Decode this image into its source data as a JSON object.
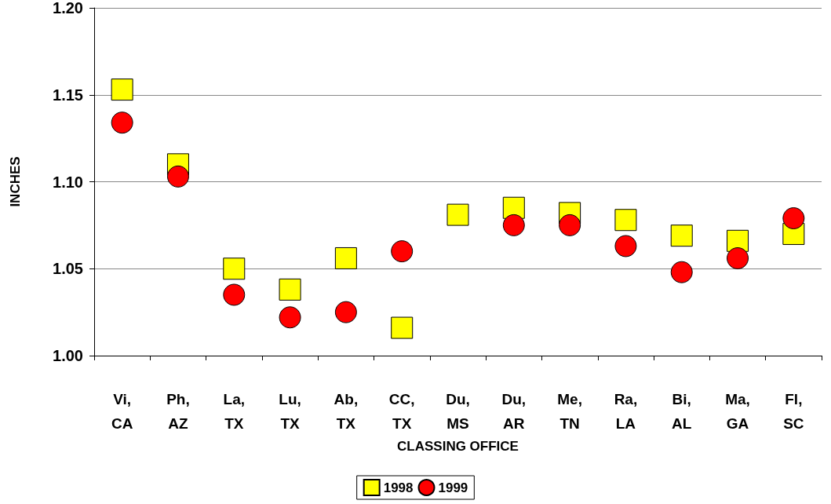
{
  "chart_data": {
    "type": "scatter",
    "xlabel": "CLASSING OFFICE",
    "ylabel": "INCHES",
    "categories": [
      "Vi,\nCA",
      "Ph,\nAZ",
      "La,\nTX",
      "Lu,\nTX",
      "Ab,\nTX",
      "CC,\nTX",
      "Du,\nMS",
      "Du,\nAR",
      "Me,\nTN",
      "Ra,\nLA",
      "Bi,\nAL",
      "Ma,\nGA",
      "Fl,\nSC"
    ],
    "series": [
      {
        "name": "1998",
        "color": "#ffff00",
        "marker": "square",
        "values": [
          1.153,
          1.11,
          1.05,
          1.038,
          1.056,
          1.016,
          1.081,
          1.085,
          1.082,
          1.078,
          1.069,
          1.066,
          1.07
        ]
      },
      {
        "name": "1999",
        "color": "#ff0000",
        "marker": "circle",
        "values": [
          1.134,
          1.103,
          1.035,
          1.022,
          1.025,
          1.06,
          null,
          1.075,
          1.075,
          1.063,
          1.048,
          1.056,
          1.079
        ]
      }
    ],
    "ylim": [
      1.0,
      1.2
    ],
    "yticks": [
      {
        "value": 1.0,
        "label": "1.00"
      },
      1.05,
      {
        "value": 1.1,
        "label": "1.10"
      },
      1.15,
      {
        "value": 1.2,
        "label": "1.20"
      }
    ],
    "grid": "y",
    "legend": "bottom"
  }
}
